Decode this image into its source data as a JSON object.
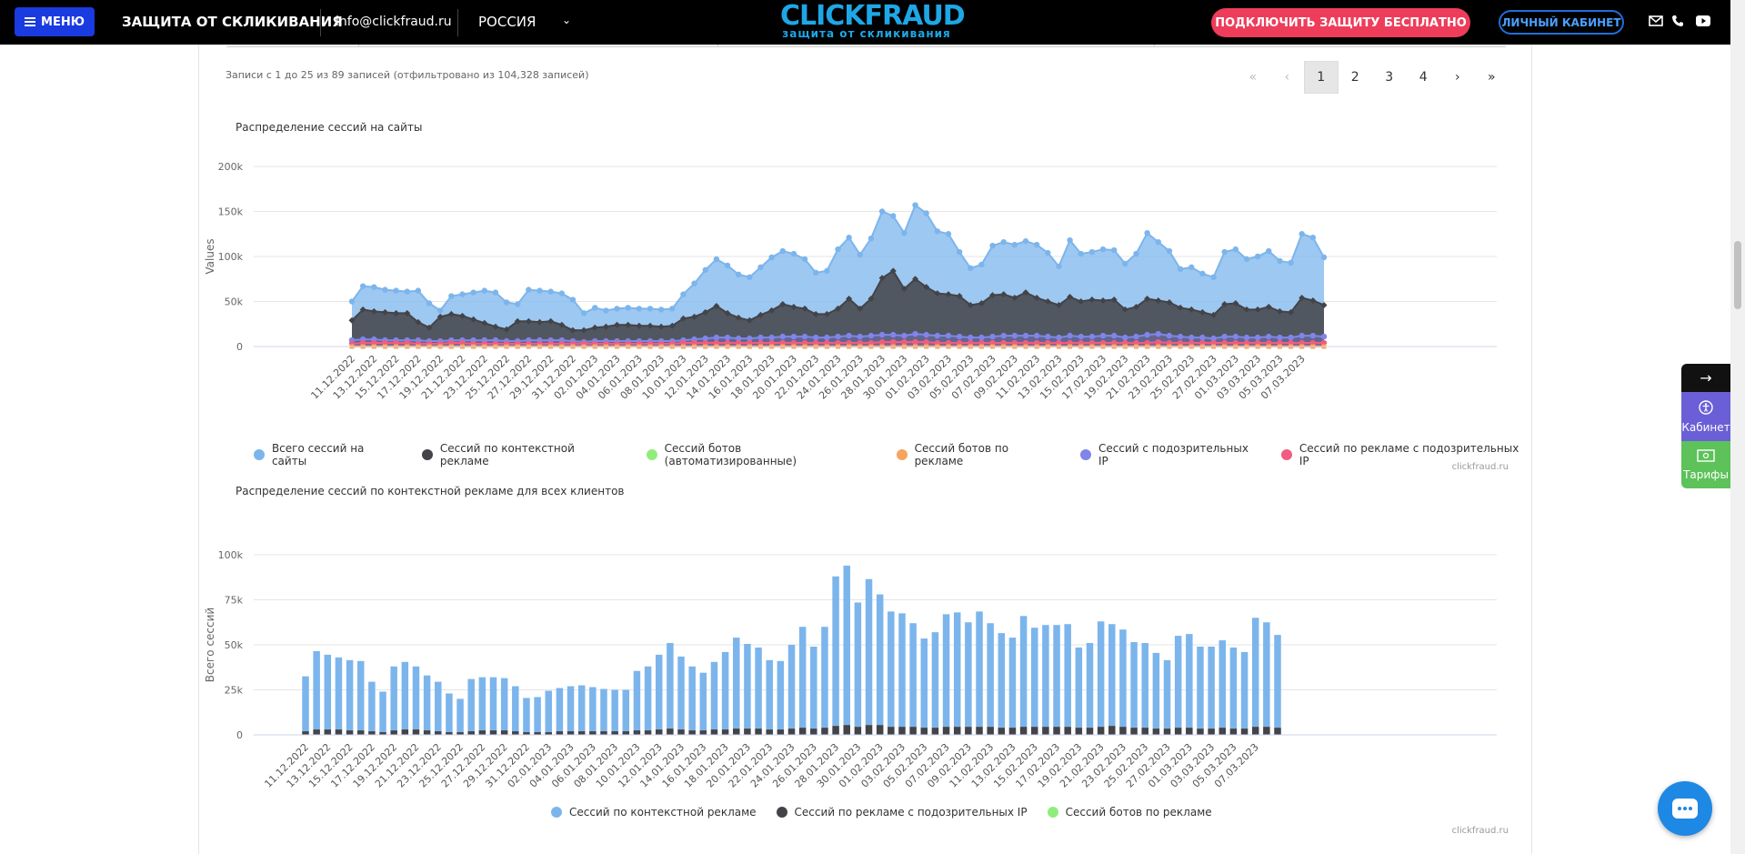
{
  "topbar": {
    "menu_label": "МЕНЮ",
    "site_title": "ЗАЩИТА ОТ СКЛИКИВАНИЯ",
    "email": "info@clickfraud.ru",
    "region": "РОССИЯ",
    "logo_main": "CLICKFRAUD",
    "logo_sub": "защита от скликивания",
    "cta_label": "ПОДКЛЮЧИТЬ ЗАЩИТУ БЕСПЛАТНО",
    "cabinet_label": "ЛИЧНЫЙ КАБИНЕТ"
  },
  "table_footer": {
    "records_info": "Записи с 1 до 25 из 89 записей (отфильтровано из 104,328 записей)",
    "pages": [
      "1",
      "2",
      "3",
      "4"
    ],
    "current_page": "1"
  },
  "side_panel": {
    "cabinet_label": "Кабинет",
    "tariffs_label": "Тарифы"
  },
  "chart_data": [
    {
      "type": "area",
      "title": "Распределение сессий на сайты",
      "ylabel": "Values",
      "ylim": [
        0,
        200000
      ],
      "yticks": [
        "0",
        "50k",
        "100k",
        "150k",
        "200k"
      ],
      "credit": "clickfraud.ru",
      "legend_position": "bottom",
      "grid": true,
      "x_tick_labels": [
        "11.12.2022",
        "13.12.2022",
        "15.12.2022",
        "17.12.2022",
        "19.12.2022",
        "21.12.2022",
        "23.12.2022",
        "25.12.2022",
        "27.12.2022",
        "29.12.2022",
        "31.12.2022",
        "02.01.2023",
        "04.01.2023",
        "06.01.2023",
        "08.01.2023",
        "10.01.2023",
        "12.01.2023",
        "14.01.2023",
        "16.01.2023",
        "18.01.2023",
        "20.01.2023",
        "22.01.2023",
        "24.01.2023",
        "26.01.2023",
        "28.01.2023",
        "30.01.2023",
        "01.02.2023",
        "03.02.2023",
        "05.02.2023",
        "07.02.2023",
        "09.02.2023",
        "11.02.2023",
        "13.02.2023",
        "15.02.2023",
        "17.02.2023",
        "19.02.2023",
        "21.02.2023",
        "23.02.2023",
        "25.02.2023",
        "27.02.2023",
        "01.03.2023",
        "03.03.2023",
        "05.03.2023",
        "07.03.2023"
      ],
      "series": [
        {
          "name": "Всего сессий на сайты",
          "color": "#7cb5ec",
          "values": [
            50000,
            67000,
            66000,
            63000,
            62000,
            61000,
            62000,
            48000,
            40000,
            56000,
            58000,
            60000,
            62000,
            60000,
            49000,
            47000,
            63000,
            62000,
            61000,
            59000,
            52000,
            37000,
            43000,
            40000,
            42000,
            43000,
            42000,
            42000,
            41000,
            42000,
            58000,
            70000,
            85000,
            97000,
            90000,
            80000,
            77000,
            88000,
            99000,
            106000,
            103000,
            97000,
            82000,
            84000,
            108000,
            121000,
            102000,
            120000,
            150000,
            145000,
            126000,
            157000,
            148000,
            128000,
            125000,
            105000,
            87000,
            91000,
            112000,
            116000,
            113000,
            117000,
            113000,
            104000,
            89000,
            118000,
            103000,
            105000,
            108000,
            107000,
            92000,
            103000,
            126000,
            116000,
            106000,
            86000,
            88000,
            81000,
            77000,
            105000,
            108000,
            97000,
            100000,
            106000,
            95000,
            93000,
            125000,
            121000,
            99000
          ]
        },
        {
          "name": "Сессий по контекстной рекламе",
          "color": "#434348",
          "values": [
            29000,
            41000,
            39000,
            38000,
            37000,
            37000,
            27000,
            21000,
            33000,
            36000,
            34000,
            30000,
            26000,
            22000,
            19000,
            28000,
            28000,
            27000,
            28000,
            24000,
            18000,
            18000,
            21000,
            22000,
            24000,
            24000,
            23000,
            23000,
            22000,
            23000,
            31000,
            33000,
            38000,
            45000,
            37000,
            32000,
            29000,
            35000,
            40000,
            47000,
            44000,
            42000,
            36000,
            36000,
            42000,
            53000,
            42000,
            53000,
            76000,
            84000,
            64000,
            75000,
            66000,
            59000,
            58000,
            56000,
            46000,
            48000,
            57000,
            58000,
            54000,
            60000,
            54000,
            50000,
            46000,
            55000,
            50000,
            52000,
            51000,
            52000,
            41000,
            44000,
            53000,
            51000,
            49000,
            43000,
            41000,
            38000,
            35000,
            47000,
            48000,
            41000,
            41000,
            44000,
            39000,
            38000,
            54000,
            51000,
            46000
          ]
        },
        {
          "name": "Сессий ботов (автоматизированные)",
          "color": "#90ed7d",
          "values": [
            0,
            0,
            0,
            0,
            0,
            0,
            0,
            0,
            0,
            0,
            0,
            0,
            0,
            0,
            0,
            0,
            0,
            0,
            0,
            0,
            0,
            0,
            0,
            0,
            0,
            0,
            0,
            0,
            0,
            0,
            0,
            0,
            0,
            0,
            0,
            0,
            0,
            0,
            0,
            0,
            0,
            0,
            0,
            0,
            0,
            0,
            0,
            0,
            0,
            0,
            0,
            0,
            0,
            0,
            0,
            0,
            0,
            0,
            0,
            0,
            0,
            0,
            0,
            0,
            0,
            0,
            0,
            0,
            0,
            0,
            0,
            0,
            0,
            0,
            0,
            0,
            0,
            0,
            0,
            0,
            0,
            0,
            0,
            0,
            0,
            0,
            0,
            0,
            0
          ]
        },
        {
          "name": "Сессий ботов по рекламе",
          "color": "#f7a35c",
          "values": [
            0,
            0,
            0,
            0,
            0,
            0,
            0,
            0,
            0,
            0,
            0,
            0,
            0,
            0,
            0,
            0,
            0,
            0,
            0,
            0,
            0,
            0,
            0,
            0,
            0,
            0,
            0,
            0,
            0,
            0,
            0,
            0,
            0,
            0,
            0,
            0,
            0,
            0,
            0,
            0,
            0,
            0,
            0,
            0,
            0,
            0,
            0,
            0,
            0,
            0,
            0,
            0,
            0,
            0,
            0,
            0,
            0,
            0,
            0,
            0,
            0,
            0,
            0,
            0,
            0,
            0,
            0,
            0,
            0,
            0,
            0,
            0,
            0,
            0,
            0,
            0,
            0,
            0,
            0,
            0,
            0,
            0,
            0,
            0,
            0,
            0,
            0,
            0,
            0
          ]
        },
        {
          "name": "Сессий с подозрительных IP",
          "color": "#8085e9",
          "values": [
            7000,
            8000,
            8000,
            7000,
            7000,
            7000,
            7000,
            6000,
            6000,
            7000,
            7000,
            7000,
            7000,
            7000,
            6000,
            6000,
            7000,
            7000,
            7000,
            7000,
            6000,
            5000,
            6000,
            6000,
            6000,
            6000,
            6000,
            6000,
            6000,
            6000,
            7000,
            8000,
            9000,
            10000,
            10000,
            9000,
            9000,
            10000,
            10000,
            11000,
            11000,
            11000,
            10000,
            10000,
            11000,
            12000,
            11000,
            12000,
            13000,
            13000,
            12000,
            14000,
            13000,
            12000,
            12000,
            11000,
            10000,
            10000,
            11000,
            12000,
            12000,
            12000,
            12000,
            11000,
            10000,
            12000,
            11000,
            11000,
            12000,
            12000,
            10000,
            11000,
            13000,
            14000,
            12000,
            11000,
            10000,
            10000,
            9000,
            11000,
            11000,
            10000,
            10000,
            11000,
            10000,
            10000,
            12000,
            12000,
            11000
          ]
        },
        {
          "name": "Сессий по рекламе с подозрительных IP",
          "color": "#f15c80",
          "values": [
            3000,
            4000,
            4000,
            4000,
            4000,
            4000,
            3000,
            3000,
            3000,
            4000,
            4000,
            3000,
            3000,
            3000,
            3000,
            3000,
            3000,
            3000,
            3000,
            3000,
            3000,
            3000,
            3000,
            3000,
            3000,
            3000,
            3000,
            3000,
            3000,
            3000,
            4000,
            4000,
            4000,
            4000,
            4000,
            4000,
            4000,
            4000,
            4000,
            4000,
            4000,
            4000,
            4000,
            4000,
            4000,
            4000,
            4000,
            4000,
            5000,
            5000,
            5000,
            5000,
            5000,
            4000,
            4000,
            4000,
            4000,
            4000,
            4000,
            4000,
            4000,
            4000,
            4000,
            4000,
            4000,
            4000,
            4000,
            4000,
            4000,
            4000,
            4000,
            4000,
            4000,
            5000,
            4000,
            4000,
            4000,
            4000,
            4000,
            4000,
            4000,
            4000,
            4000,
            4000,
            4000,
            4000,
            4000,
            4000,
            4000
          ]
        }
      ]
    },
    {
      "type": "bar",
      "title": "Распределение сессий по контекстной рекламе для всех клиентов",
      "ylabel": "Всего сессий",
      "ylim": [
        0,
        100000
      ],
      "yticks": [
        "0",
        "25k",
        "50k",
        "75k",
        "100k"
      ],
      "credit": "clickfraud.ru",
      "legend_position": "bottom",
      "grid": true,
      "stacked": true,
      "x_tick_labels": [
        "11.12.2022",
        "13.12.2022",
        "15.12.2022",
        "17.12.2022",
        "19.12.2022",
        "21.12.2022",
        "23.12.2022",
        "25.12.2022",
        "27.12.2022",
        "29.12.2022",
        "31.12.2022",
        "02.01.2023",
        "04.01.2023",
        "06.01.2023",
        "08.01.2023",
        "10.01.2023",
        "12.01.2023",
        "14.01.2023",
        "16.01.2023",
        "18.01.2023",
        "20.01.2023",
        "22.01.2023",
        "24.01.2023",
        "26.01.2023",
        "28.01.2023",
        "30.01.2023",
        "01.02.2023",
        "03.02.2023",
        "05.02.2023",
        "07.02.2023",
        "09.02.2023",
        "11.02.2023",
        "13.02.2023",
        "15.02.2023",
        "17.02.2023",
        "19.02.2023",
        "21.02.2023",
        "23.02.2023",
        "25.02.2023",
        "27.02.2023",
        "01.03.2023",
        "03.03.2023",
        "05.03.2023",
        "07.03.2023"
      ],
      "series": [
        {
          "name": "Сессий по контекстной рекламе",
          "color": "#7cb5ec",
          "values": [
            30500,
            43500,
            41500,
            40000,
            39000,
            38500,
            27500,
            22500,
            35500,
            37500,
            35000,
            30500,
            27500,
            21500,
            18500,
            29000,
            29500,
            29500,
            29000,
            25000,
            19000,
            19500,
            23000,
            24000,
            25000,
            25500,
            24500,
            23500,
            23000,
            23000,
            33000,
            35500,
            41500,
            47500,
            40500,
            35500,
            32000,
            37500,
            43000,
            50500,
            47000,
            45000,
            38500,
            38000,
            46500,
            56000,
            45500,
            56000,
            83000,
            88500,
            69000,
            81000,
            72500,
            64000,
            63000,
            57500,
            49500,
            53000,
            62500,
            63500,
            58000,
            64000,
            57500,
            52500,
            50000,
            61500,
            55000,
            56500,
            56500,
            57000,
            44500,
            47000,
            58500,
            56500,
            54000,
            47500,
            47000,
            42000,
            38000,
            51000,
            52000,
            45500,
            45500,
            48500,
            45000,
            42500,
            60500,
            58000,
            51500
          ]
        },
        {
          "name": "Сессий по рекламе с подозрительных IP",
          "color": "#434348",
          "values": [
            2000,
            3000,
            3000,
            3000,
            2500,
            2500,
            2000,
            1500,
            2500,
            3000,
            3000,
            2500,
            2000,
            1500,
            1500,
            2000,
            2500,
            2500,
            2500,
            2000,
            1500,
            1500,
            1500,
            2000,
            2000,
            2000,
            2000,
            2000,
            2000,
            2000,
            2500,
            2500,
            3000,
            3500,
            3000,
            2500,
            2500,
            3000,
            3000,
            3500,
            3500,
            3500,
            3000,
            3000,
            3500,
            4000,
            3500,
            4000,
            5000,
            5500,
            4500,
            5500,
            5500,
            4500,
            4500,
            4500,
            4000,
            4000,
            4500,
            4500,
            4500,
            4500,
            4500,
            4000,
            4000,
            4500,
            4500,
            4500,
            4500,
            4500,
            4000,
            4000,
            4500,
            5000,
            4500,
            4000,
            4000,
            3500,
            3500,
            4000,
            4000,
            3500,
            3500,
            4000,
            3500,
            3500,
            4500,
            4500,
            4000
          ]
        },
        {
          "name": "Сессий ботов по рекламе",
          "color": "#90ed7d",
          "values": [
            0,
            0,
            0,
            0,
            0,
            0,
            0,
            0,
            0,
            0,
            0,
            0,
            0,
            0,
            0,
            0,
            0,
            0,
            0,
            0,
            0,
            0,
            0,
            0,
            0,
            0,
            0,
            0,
            0,
            0,
            0,
            0,
            0,
            0,
            0,
            0,
            0,
            0,
            0,
            0,
            0,
            0,
            0,
            0,
            0,
            0,
            0,
            0,
            0,
            0,
            0,
            0,
            0,
            0,
            0,
            0,
            0,
            0,
            0,
            0,
            0,
            0,
            0,
            0,
            0,
            0,
            0,
            0,
            0,
            0,
            0,
            0,
            0,
            0,
            0,
            0,
            0,
            0,
            0,
            0,
            0,
            0,
            0,
            0,
            0,
            0,
            0,
            0,
            0
          ]
        }
      ]
    }
  ]
}
